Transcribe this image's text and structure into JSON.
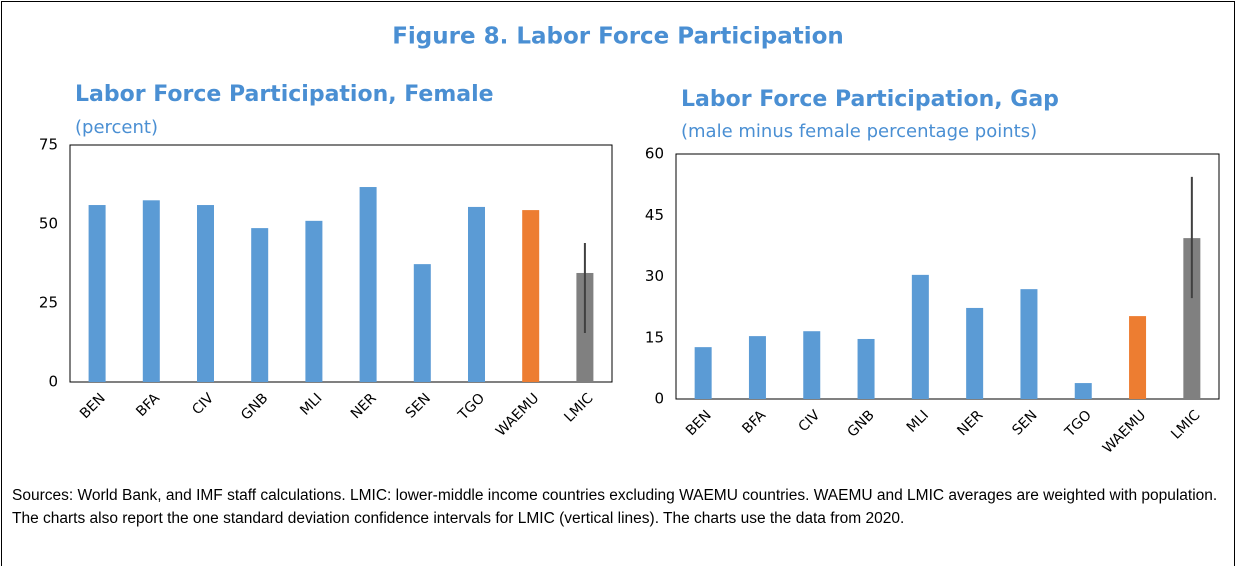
{
  "title": "Figure 8. Labor Force Participation",
  "chart_data": [
    {
      "type": "bar",
      "title": "Labor Force Participation, Female",
      "subtitle": "(percent)",
      "categories": [
        "BEN",
        "BFA",
        "CIV",
        "GNB",
        "MLI",
        "NER",
        "SEN",
        "TGO",
        "WAEMU",
        "LMIC"
      ],
      "values": [
        56,
        57.5,
        56,
        48.7,
        51,
        61.7,
        37.3,
        55.4,
        54.4,
        34.5
      ],
      "colors": [
        "#5b9bd5",
        "#5b9bd5",
        "#5b9bd5",
        "#5b9bd5",
        "#5b9bd5",
        "#5b9bd5",
        "#5b9bd5",
        "#5b9bd5",
        "#ed7d31",
        "#808080"
      ],
      "ci_low": [
        null,
        null,
        null,
        null,
        null,
        null,
        null,
        null,
        null,
        15.5
      ],
      "ci_high": [
        null,
        null,
        null,
        null,
        null,
        null,
        null,
        null,
        null,
        44
      ],
      "ylim": [
        0,
        75
      ],
      "yticks": [
        0,
        25,
        50,
        75
      ],
      "grid": false
    },
    {
      "type": "bar",
      "title": "Labor Force Participation, Gap",
      "subtitle": "(male minus female percentage points)",
      "categories": [
        "BEN",
        "BFA",
        "CIV",
        "GNB",
        "MLI",
        "NER",
        "SEN",
        "TGO",
        "WAEMU",
        "LMIC"
      ],
      "values": [
        12.7,
        15.4,
        16.6,
        14.7,
        30.4,
        22.3,
        26.9,
        3.9,
        20.3,
        39.4
      ],
      "colors": [
        "#5b9bd5",
        "#5b9bd5",
        "#5b9bd5",
        "#5b9bd5",
        "#5b9bd5",
        "#5b9bd5",
        "#5b9bd5",
        "#5b9bd5",
        "#ed7d31",
        "#808080"
      ],
      "ci_low": [
        null,
        null,
        null,
        null,
        null,
        null,
        null,
        null,
        null,
        24.7
      ],
      "ci_high": [
        null,
        null,
        null,
        null,
        null,
        null,
        null,
        null,
        null,
        54.4
      ],
      "ylim": [
        0,
        60
      ],
      "yticks": [
        0,
        15,
        30,
        45,
        60
      ],
      "grid": false
    }
  ],
  "note": "Sources: World Bank, and IMF staff calculations. LMIC: lower-middle income countries excluding WAEMU countries. WAEMU and LMIC averages are weighted with population. The charts also report the one standard deviation confidence intervals for LMIC (vertical lines). The charts use the data from 2020."
}
